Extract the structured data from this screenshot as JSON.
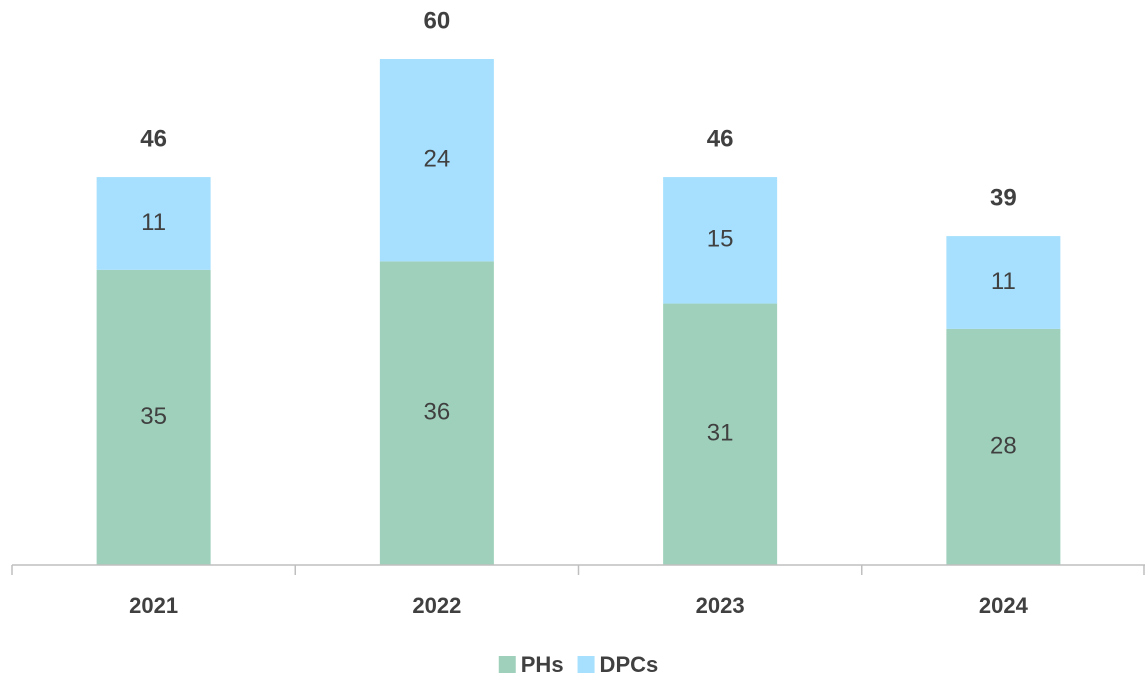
{
  "chart_data": {
    "type": "stacked_bar",
    "categories": [
      "2021",
      "2022",
      "2023",
      "2024"
    ],
    "series": [
      {
        "name": "PHs",
        "color": "#9fd0bc",
        "values": [
          35,
          36,
          31,
          28
        ]
      },
      {
        "name": "DPCs",
        "color": "#a6e0fe",
        "values": [
          11,
          24,
          15,
          11
        ]
      }
    ],
    "totals": [
      46,
      60,
      46,
      39
    ],
    "legend": "bottom"
  }
}
